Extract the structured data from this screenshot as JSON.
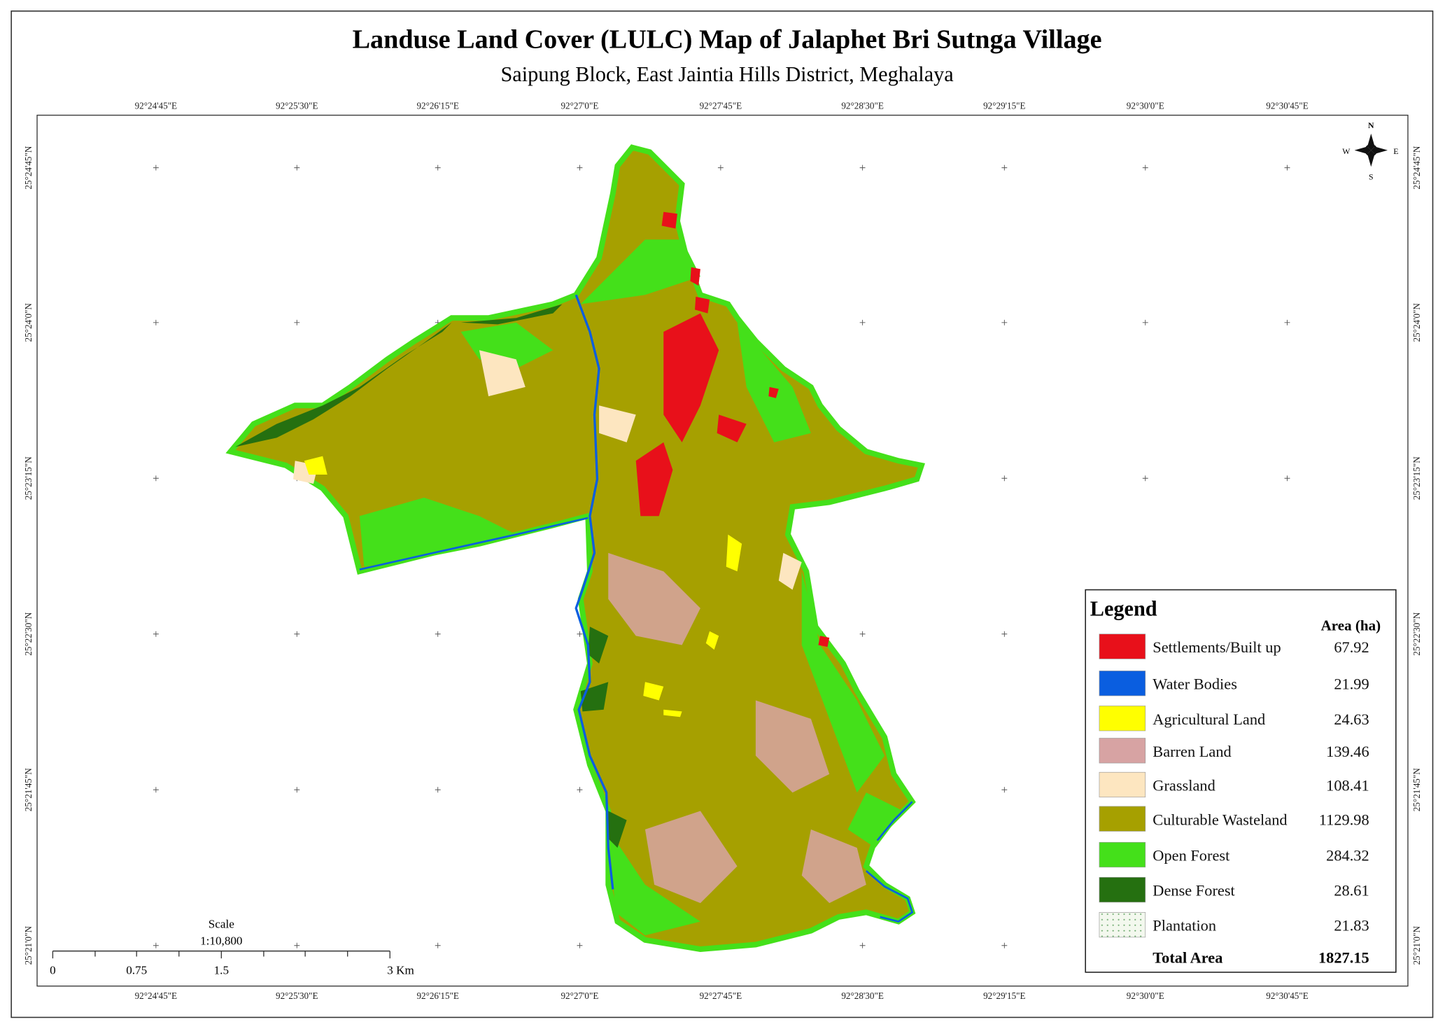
{
  "title": "Landuse Land Cover (LULC) Map of Jalaphet Bri Sutnga Village",
  "subtitle": "Saipung Block, East Jaintia Hills District, Meghalaya",
  "longitude_labels": [
    "92°24'45\"E",
    "92°25'30\"E",
    "92°26'15\"E",
    "92°27'0\"E",
    "92°27'45\"E",
    "92°28'30\"E",
    "92°29'15\"E",
    "92°30'0\"E",
    "92°30'45\"E"
  ],
  "latitude_labels": [
    "25°24'45\"N",
    "25°24'0\"N",
    "25°23'15\"N",
    "25°22'30\"N",
    "25°21'45\"N",
    "25°21'0\"N"
  ],
  "compass": {
    "north": "N",
    "east": "E",
    "south": "S",
    "west": "W"
  },
  "scale": {
    "title": "Scale",
    "ratio": "1:10,800",
    "ticks": [
      "0",
      "0.75",
      "1.5",
      "3 Km"
    ]
  },
  "legend": {
    "title": "Legend",
    "area_header": "Area (ha)",
    "items": [
      {
        "label": "Settlements/Built up",
        "area": "67.92",
        "color": "#e8101a"
      },
      {
        "label": "Water Bodies",
        "area": "21.99",
        "color": "#0a5ee0"
      },
      {
        "label": "Agricultural Land",
        "area": "24.63",
        "color": "#ffff00"
      },
      {
        "label": "Barren Land",
        "area": "139.46",
        "color": "#d7a3a3"
      },
      {
        "label": "Grassland",
        "area": "108.41",
        "color": "#fde6c0"
      },
      {
        "label": "Culturable Wasteland",
        "area": "1129.98",
        "color": "#a6a000"
      },
      {
        "label": "Open Forest",
        "area": "284.32",
        "color": "#44e01a"
      },
      {
        "label": "Dense Forest",
        "area": "28.61",
        "color": "#257010"
      },
      {
        "label": "Plantation",
        "area": "21.83",
        "color": "#f3f8ee"
      }
    ],
    "total_label": "Total Area",
    "total": "1827.15"
  }
}
